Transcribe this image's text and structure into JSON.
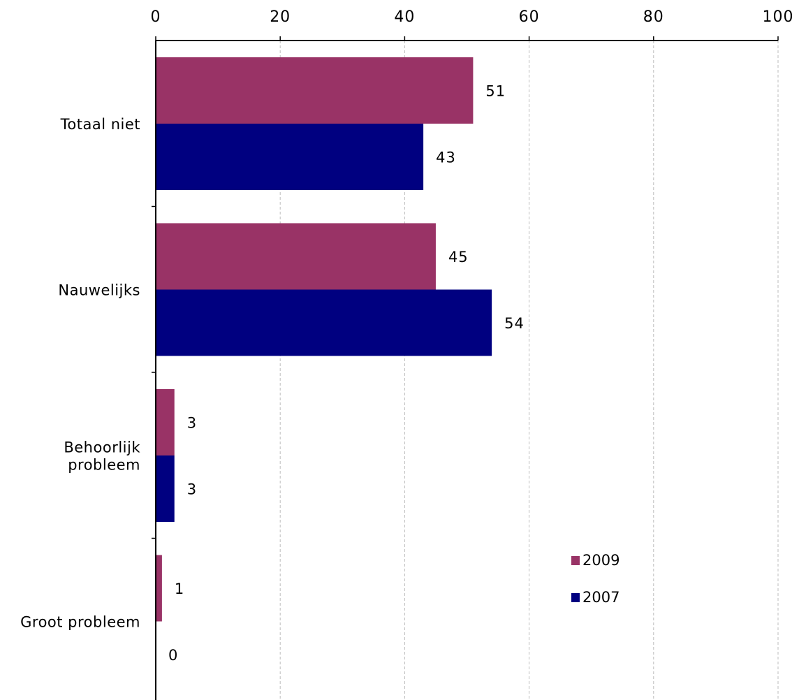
{
  "chart_data": {
    "type": "bar",
    "orientation": "horizontal",
    "x_axis_position": "top",
    "categories": [
      "Totaal niet",
      "Nauwelijks",
      "Behoorlijk probleem",
      "Groot probleem"
    ],
    "category_lines": [
      [
        "Totaal niet"
      ],
      [
        "Nauwelijks"
      ],
      [
        "Behoorlijk",
        "probleem"
      ],
      [
        "Groot probleem"
      ]
    ],
    "series": [
      {
        "name": "2009",
        "values": [
          51,
          45,
          3,
          1
        ]
      },
      {
        "name": "2007",
        "values": [
          43,
          54,
          3,
          0
        ]
      }
    ],
    "xlim": [
      0,
      100
    ],
    "xticks": [
      "0",
      "20",
      "40",
      "60",
      "80",
      "100"
    ],
    "xtick_values": [
      0,
      20,
      40,
      60,
      80,
      100
    ],
    "grid": "vertical dashed",
    "legend_placement": "bottom-right",
    "colors": {
      "2009": "#993366",
      "2007": "#000080"
    },
    "title": "",
    "xlabel": "",
    "ylabel": ""
  }
}
